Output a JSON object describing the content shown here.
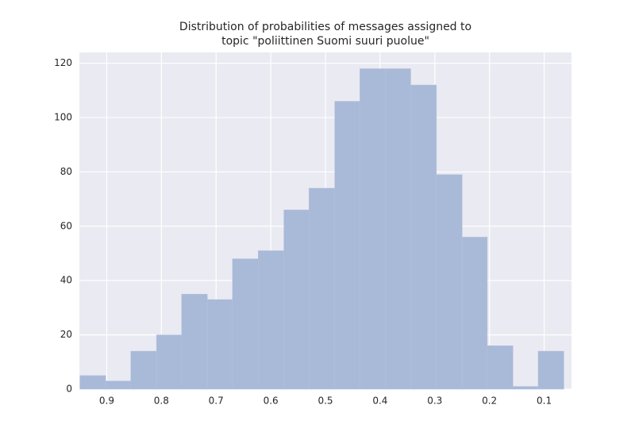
{
  "chart_data": {
    "type": "histogram",
    "title": [
      "Distribution of probabilities of messages assigned to",
      "topic \"poliittinen Suomi suuri puolue\""
    ],
    "bins": [
      0.949,
      0.902,
      0.856,
      0.809,
      0.763,
      0.716,
      0.67,
      0.623,
      0.576,
      0.53,
      0.483,
      0.437,
      0.39,
      0.344,
      0.297,
      0.25,
      0.204,
      0.157,
      0.111,
      0.064
    ],
    "values": [
      5,
      3,
      14,
      20,
      35,
      33,
      48,
      51,
      66,
      74,
      106,
      118,
      118,
      112,
      79,
      56,
      16,
      1,
      14
    ],
    "color": "#a9b9d8",
    "xlim": [
      0.95,
      0.05
    ],
    "xticks": [
      0.9,
      0.8,
      0.7,
      0.6,
      0.5,
      0.4,
      0.3,
      0.2,
      0.1
    ],
    "ylim": [
      0,
      124
    ],
    "yticks": [
      0,
      20,
      40,
      60,
      80,
      100,
      120
    ],
    "grid": true
  }
}
